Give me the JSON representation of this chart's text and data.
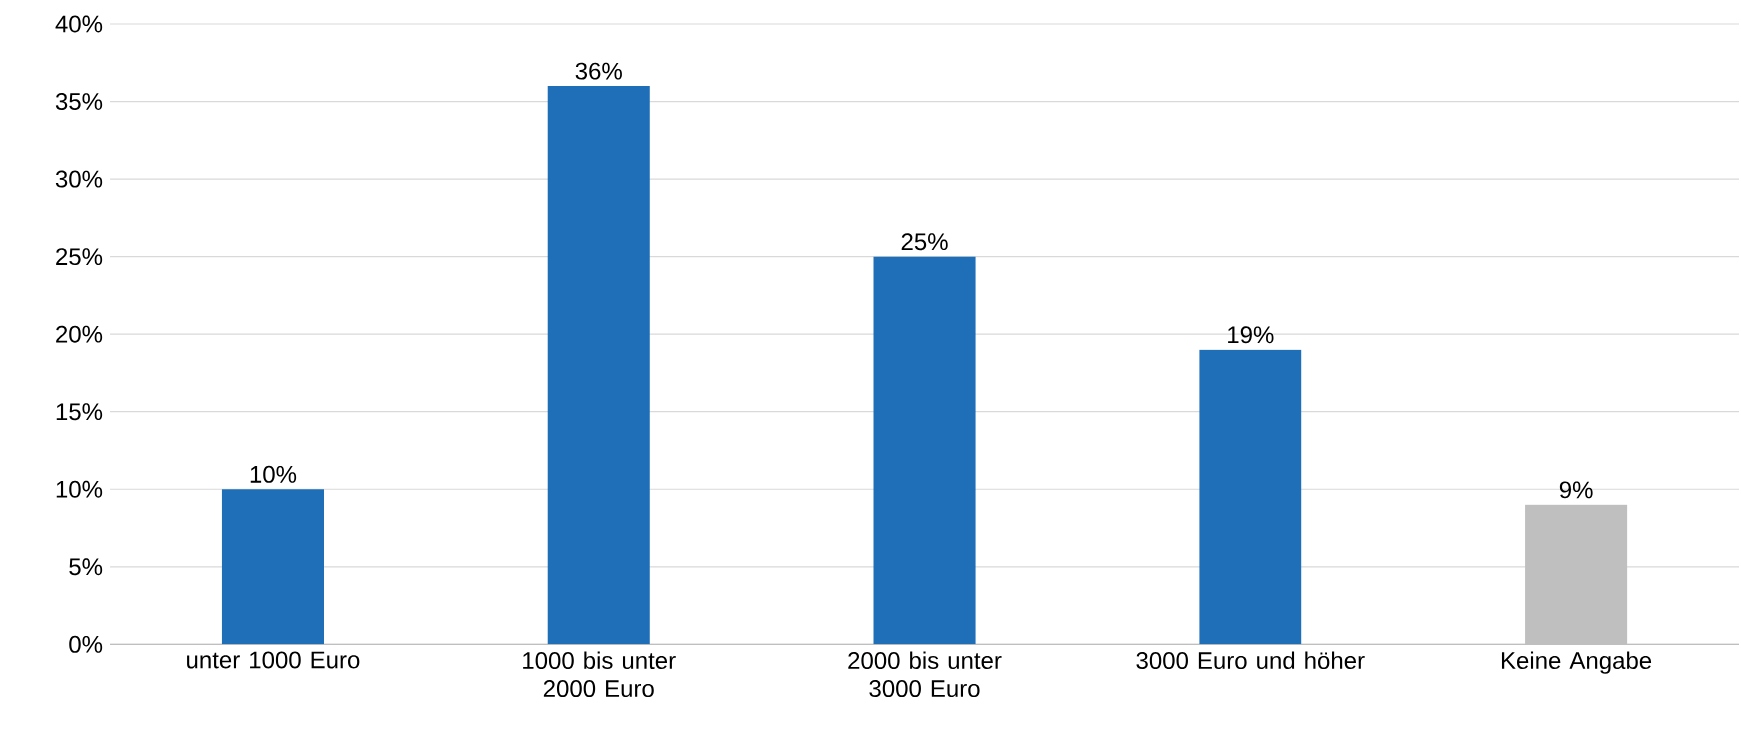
{
  "chart_data": {
    "type": "bar",
    "categories": [
      "unter 1000 Euro",
      "1000 bis unter 2000 Euro",
      "2000 bis unter 3000 Euro",
      "3000 Euro und höher",
      "Keine Angabe"
    ],
    "values": [
      10,
      36,
      25,
      19,
      9
    ],
    "value_labels": [
      "10%",
      "36%",
      "25%",
      "19%",
      "9%"
    ],
    "colors": [
      "#1f6fb8",
      "#1f6fb8",
      "#1f6fb8",
      "#1f6fb8",
      "#bfbfbf"
    ],
    "ylim": [
      0,
      40
    ],
    "yticks": [
      {
        "value": 0,
        "label": "0%"
      },
      {
        "value": 5,
        "label": "5%"
      },
      {
        "value": 10,
        "label": "10%"
      },
      {
        "value": 15,
        "label": "15%"
      },
      {
        "value": 20,
        "label": "20%"
      },
      {
        "value": 25,
        "label": "25%"
      },
      {
        "value": 30,
        "label": "30%"
      },
      {
        "value": 35,
        "label": "35%"
      },
      {
        "value": 40,
        "label": "40%"
      }
    ],
    "grid": "y",
    "legend": false
  }
}
